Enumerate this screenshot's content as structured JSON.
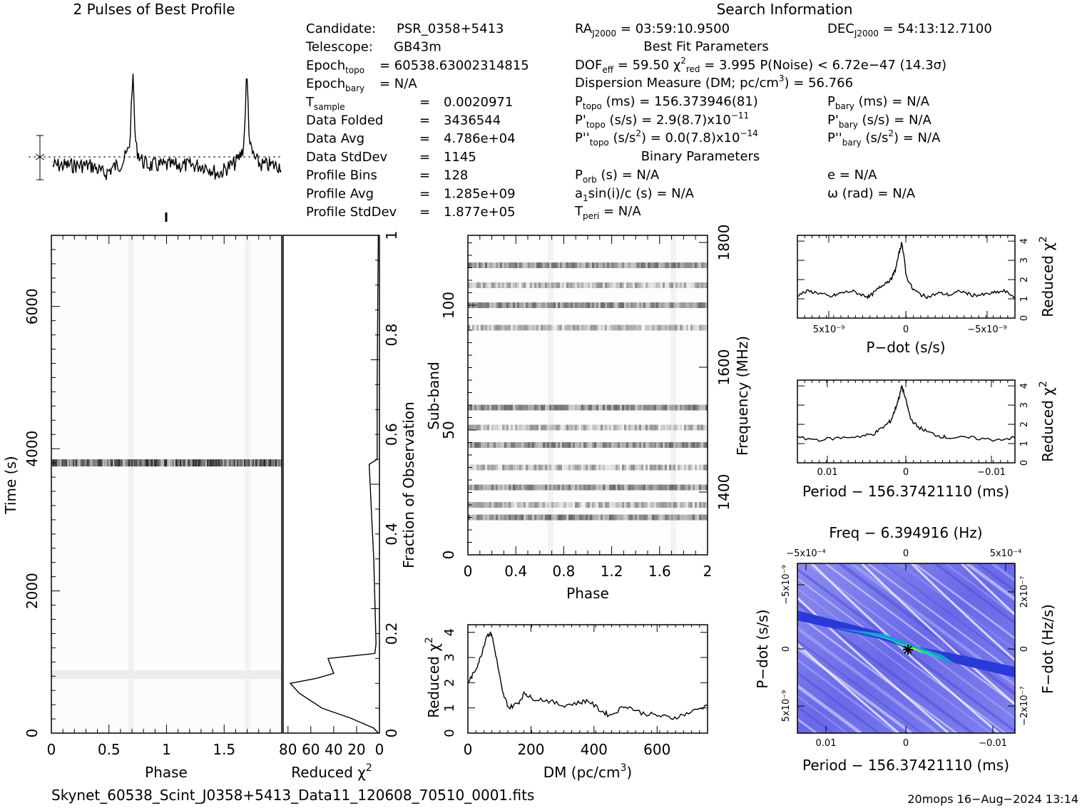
{
  "plot_title": "2 Pulses of Best Profile",
  "search_title": "Search Information",
  "info_left": [
    [
      "Candidate:",
      "PSR_0358+5413"
    ],
    [
      "Telescope:",
      "GB43m"
    ],
    [
      "Epoch_topo",
      "= 60538.63002314815"
    ],
    [
      "Epoch_bary",
      "= N/A"
    ],
    [
      "T_sample",
      "= 0.0020971"
    ],
    [
      "Data Folded",
      "= 3436544"
    ],
    [
      "Data Avg",
      "= 4.786e+04"
    ],
    [
      "Data StdDev",
      "= 1145"
    ],
    [
      "Profile Bins",
      "= 128"
    ],
    [
      "Profile Avg",
      "= 1.285e+09"
    ],
    [
      "Profile StdDev",
      "= 1.877e+05"
    ]
  ],
  "info": {
    "ra": "RA_J2000 = 03:59:10.9500",
    "dec": "DEC_J2000 = 54:13:12.7100",
    "best_fit": "Best Fit Parameters",
    "dof": "DOF_eff = 59.50  χ²_red = 3.995  P(Noise) < 6.72e−47  (14.3σ)",
    "dm": "Dispersion Measure (DM; pc/cm³) = 56.766",
    "ptopo": "P_topo (ms) = 156.373946(81)",
    "pbary": "P_bary (ms) = N/A",
    "pdtopo": "P'_topo (s/s) = 2.9(8.7)x10⁻¹¹",
    "pdbary": "P'_bary (s/s) = N/A",
    "pddtopo": "P''_topo (s/s²) = 0.0(7.8)x10⁻¹⁴",
    "pddbary": "P''_bary (s/s²) = N/A",
    "binary": "Binary Parameters",
    "porb": "P_orb (s) = N/A",
    "e": "e = N/A",
    "a1": "a1sin(i)/c (s) = N/A",
    "omega": "ω (rad) = N/A",
    "tperi": "T_peri = N/A"
  },
  "footer": {
    "filename": "Skynet_60538_Scint_J0358+5413_Data11_120608_70510_0001.fits",
    "stamp": "20mops 16−Aug−2024 13:14"
  },
  "chart_data": [
    {
      "type": "line",
      "name": "profile",
      "title": "2 Pulses of Best Profile",
      "x_range": [
        0,
        2
      ],
      "peaks_phase": [
        0.7,
        1.7
      ]
    },
    {
      "type": "heatmap",
      "name": "time-phase",
      "xlabel": "Phase",
      "ylabel": "Time (s)",
      "xlim": [
        0,
        2
      ],
      "ylim": [
        0,
        7000
      ],
      "x_ticks": [
        "0",
        "0.5",
        "1",
        "1.5"
      ],
      "y_ticks": [
        "0",
        "2000",
        "4000",
        "6000"
      ],
      "bright_rows_time_s": [
        3800,
        850
      ]
    },
    {
      "type": "line",
      "name": "reduced-chi2-vs-fraction",
      "xlabel": "Reduced χ²",
      "ylabel": "Fraction of Observation",
      "x_ticks": [
        "80",
        "60",
        "40",
        "20",
        "0"
      ],
      "y_ticks": [
        "0",
        "0.2",
        "0.4",
        "0.6",
        "0.8",
        "1"
      ],
      "points": [
        [
          1,
          1.0
        ],
        [
          2,
          0.7
        ],
        [
          2,
          0.55
        ],
        [
          9,
          0.54
        ],
        [
          5,
          0.35
        ],
        [
          3,
          0.18
        ],
        [
          4,
          0.16
        ],
        [
          45,
          0.15
        ],
        [
          40,
          0.12
        ],
        [
          55,
          0.11
        ],
        [
          78,
          0.1
        ],
        [
          70,
          0.08
        ],
        [
          50,
          0.05
        ],
        [
          25,
          0.03
        ],
        [
          5,
          0.01
        ],
        [
          1,
          0.0
        ]
      ]
    },
    {
      "type": "heatmap",
      "name": "subband-phase",
      "xlabel": "Phase",
      "ylabel": "Sub-band",
      "y2label": "Frequency (MHz)",
      "xlim": [
        0,
        2
      ],
      "ylim": [
        0,
        128
      ],
      "x_ticks": [
        "0",
        "0.4",
        "0.8",
        "1.2",
        "1.6",
        "2"
      ],
      "y_ticks": [
        "0",
        "50",
        "100"
      ],
      "y2_ticks": [
        "1400",
        "1600",
        "1800"
      ],
      "active_bands": [
        15,
        20,
        27,
        35,
        44,
        51,
        59,
        91,
        100,
        108,
        116
      ]
    },
    {
      "type": "line",
      "name": "dm-curve",
      "xlabel": "DM (pc/cm³)",
      "ylabel": "Reduced χ²",
      "x_ticks": [
        "0",
        "200",
        "400",
        "600"
      ],
      "y_ticks": [
        "0",
        "1",
        "2",
        "3",
        "4"
      ],
      "xlim": [
        0,
        760
      ],
      "ylim": [
        0,
        4.3
      ],
      "points": [
        [
          0,
          2.0
        ],
        [
          20,
          2.4
        ],
        [
          40,
          3.0
        ],
        [
          60,
          3.9
        ],
        [
          75,
          3.95
        ],
        [
          90,
          3.0
        ],
        [
          110,
          1.6
        ],
        [
          130,
          1.0
        ],
        [
          160,
          1.2
        ],
        [
          180,
          1.6
        ],
        [
          200,
          1.4
        ],
        [
          250,
          1.3
        ],
        [
          300,
          1.1
        ],
        [
          350,
          1.2
        ],
        [
          380,
          1.3
        ],
        [
          420,
          0.9
        ],
        [
          450,
          0.7
        ],
        [
          500,
          1.1
        ],
        [
          550,
          0.8
        ],
        [
          600,
          0.7
        ],
        [
          650,
          0.6
        ],
        [
          700,
          0.8
        ],
        [
          760,
          1.1
        ]
      ]
    },
    {
      "type": "line",
      "name": "pdot-curve",
      "xlabel": "P−dot (s/s)",
      "ylabel": "Reduced χ²",
      "x_ticks": [
        "5x10⁻⁹",
        "0",
        "−5x10⁻⁹"
      ],
      "y_ticks": [
        "0",
        "1",
        "2",
        "3",
        "4"
      ],
      "ylim": [
        0,
        4.3
      ],
      "points": [
        [
          0,
          1.2
        ],
        [
          0.05,
          1.4
        ],
        [
          0.1,
          1.3
        ],
        [
          0.15,
          1.1
        ],
        [
          0.2,
          1.3
        ],
        [
          0.25,
          1.4
        ],
        [
          0.3,
          1.2
        ],
        [
          0.33,
          1.1
        ],
        [
          0.37,
          1.5
        ],
        [
          0.4,
          1.8
        ],
        [
          0.43,
          2.0
        ],
        [
          0.45,
          2.5
        ],
        [
          0.47,
          3.5
        ],
        [
          0.48,
          3.9
        ],
        [
          0.49,
          3.2
        ],
        [
          0.5,
          2.2
        ],
        [
          0.53,
          1.5
        ],
        [
          0.57,
          1.2
        ],
        [
          0.6,
          1.1
        ],
        [
          0.65,
          1.3
        ],
        [
          0.7,
          1.2
        ],
        [
          0.75,
          1.4
        ],
        [
          0.8,
          1.2
        ],
        [
          0.85,
          1.2
        ],
        [
          0.9,
          1.3
        ],
        [
          0.95,
          1.4
        ],
        [
          1.0,
          1.1
        ]
      ]
    },
    {
      "type": "line",
      "name": "period-curve",
      "xlabel": "Period − 156.37421110 (ms)",
      "ylabel": "Reduced χ²",
      "x_ticks": [
        "0.01",
        "0",
        "−0.01"
      ],
      "y_ticks": [
        "0",
        "1",
        "2",
        "3",
        "4"
      ],
      "ylim": [
        0,
        4.3
      ],
      "points": [
        [
          0,
          1.3
        ],
        [
          0.1,
          1.2
        ],
        [
          0.2,
          1.3
        ],
        [
          0.3,
          1.4
        ],
        [
          0.35,
          1.5
        ],
        [
          0.4,
          1.9
        ],
        [
          0.43,
          2.2
        ],
        [
          0.45,
          2.8
        ],
        [
          0.47,
          3.5
        ],
        [
          0.48,
          4.0
        ],
        [
          0.5,
          3.2
        ],
        [
          0.52,
          2.3
        ],
        [
          0.55,
          1.9
        ],
        [
          0.6,
          1.6
        ],
        [
          0.65,
          1.4
        ],
        [
          0.7,
          1.3
        ],
        [
          0.8,
          1.3
        ],
        [
          0.9,
          1.2
        ],
        [
          1.0,
          1.3
        ]
      ]
    },
    {
      "type": "heatmap",
      "name": "p-pdot-plane",
      "title": "Freq − 6.394916 (Hz)",
      "xlabel": "Period − 156.37421110 (ms)",
      "ylabel": "P−dot (s/s)",
      "y2label": "F−dot (Hz/s)",
      "x_ticks": [
        "0.01",
        "0",
        "−0.01"
      ],
      "x2_ticks": [
        "−5x10⁻⁴",
        "0",
        "5x10⁻⁴"
      ],
      "y_ticks": [
        "−5x10⁻⁹",
        "0",
        "5x10⁻⁹"
      ],
      "y2_ticks": [
        "2x10⁻⁷",
        "0",
        "−2x10⁻⁷"
      ]
    }
  ]
}
